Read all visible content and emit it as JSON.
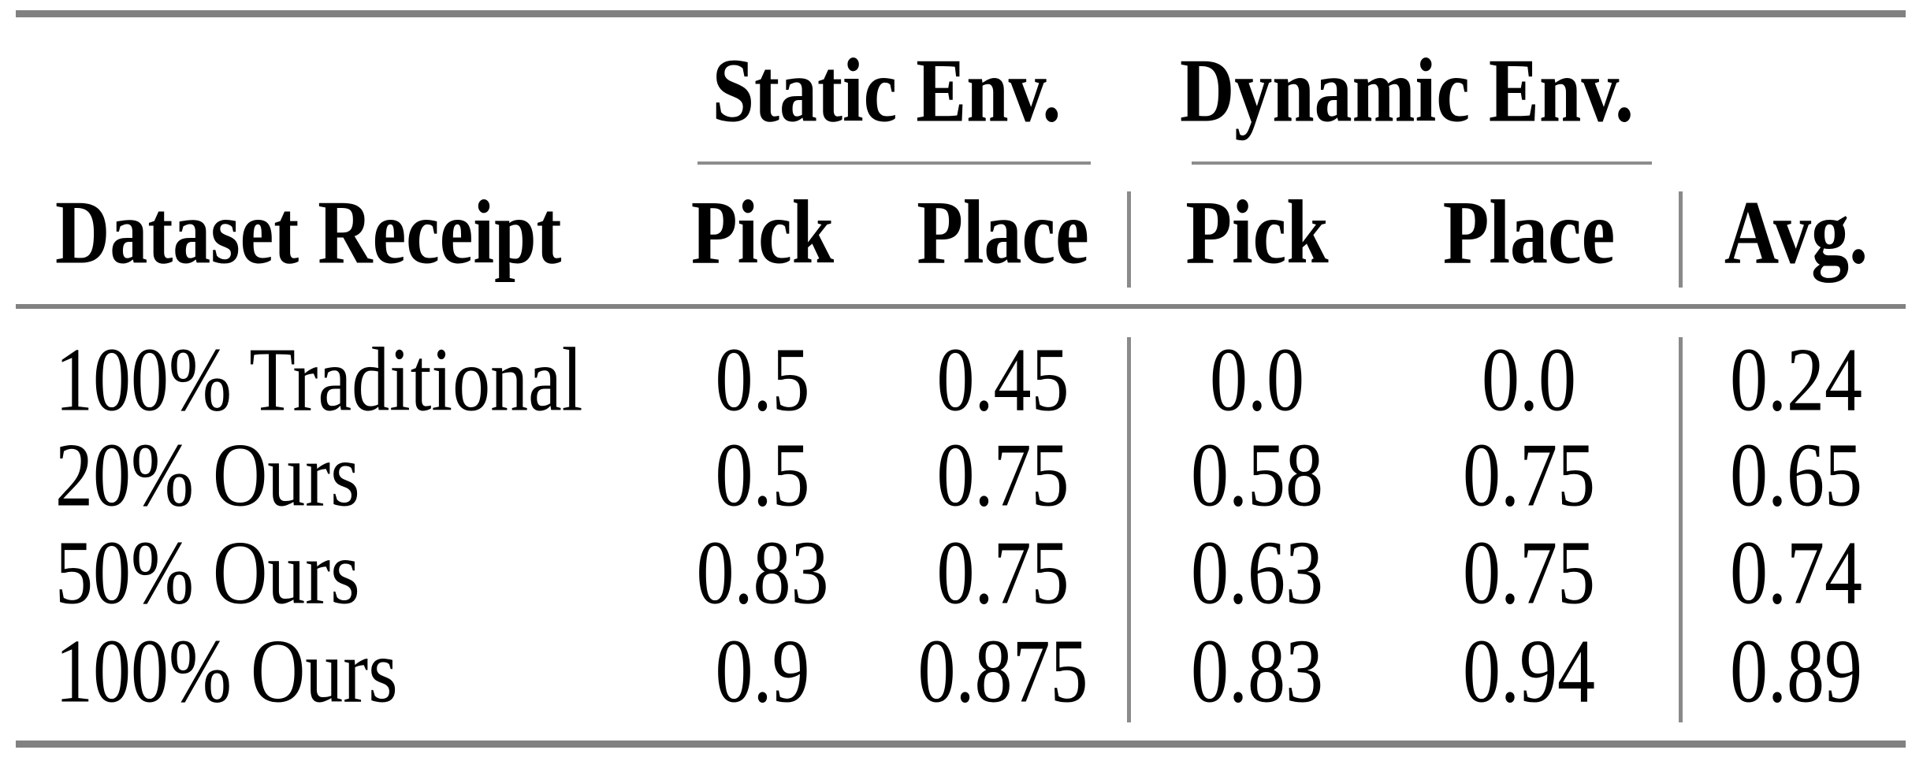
{
  "table": {
    "group_headers": [
      {
        "label": "Static Env."
      },
      {
        "label": "Dynamic Env."
      }
    ],
    "columns": [
      "Dataset Receipt",
      "Pick",
      "Place",
      "Pick",
      "Place",
      "Avg."
    ],
    "rows": [
      {
        "label": "100% Traditional",
        "values": [
          "0.5",
          "0.45",
          "0.0",
          "0.0",
          "0.24"
        ]
      },
      {
        "label": "20% Ours",
        "values": [
          "0.5",
          "0.75",
          "0.58",
          "0.75",
          "0.65"
        ]
      },
      {
        "label": "50% Ours",
        "values": [
          "0.83",
          "0.75",
          "0.63",
          "0.75",
          "0.74"
        ]
      },
      {
        "label": "100% Ours",
        "values": [
          "0.9",
          "0.875",
          "0.83",
          "0.94",
          "0.89"
        ]
      }
    ]
  },
  "colors": {
    "text": "#000000",
    "background": "#ffffff",
    "rule_heavy": "#818181",
    "rule_light": "#8d8d8d"
  },
  "chart_data": {
    "type": "table",
    "title": "",
    "column_groups": [
      {
        "label": "Static Env.",
        "spans": [
          "Pick",
          "Place"
        ]
      },
      {
        "label": "Dynamic Env.",
        "spans": [
          "Pick",
          "Place"
        ]
      }
    ],
    "columns": [
      "Dataset Receipt",
      "Static Pick",
      "Static Place",
      "Dynamic Pick",
      "Dynamic Place",
      "Avg."
    ],
    "rows": [
      {
        "dataset_receipt": "100% Traditional",
        "static_pick": 0.5,
        "static_place": 0.45,
        "dynamic_pick": 0.0,
        "dynamic_place": 0.0,
        "avg": 0.24
      },
      {
        "dataset_receipt": "20% Ours",
        "static_pick": 0.5,
        "static_place": 0.75,
        "dynamic_pick": 0.58,
        "dynamic_place": 0.75,
        "avg": 0.65
      },
      {
        "dataset_receipt": "50% Ours",
        "static_pick": 0.83,
        "static_place": 0.75,
        "dynamic_pick": 0.63,
        "dynamic_place": 0.75,
        "avg": 0.74
      },
      {
        "dataset_receipt": "100% Ours",
        "static_pick": 0.9,
        "static_place": 0.875,
        "dynamic_pick": 0.83,
        "dynamic_place": 0.94,
        "avg": 0.89
      }
    ]
  }
}
